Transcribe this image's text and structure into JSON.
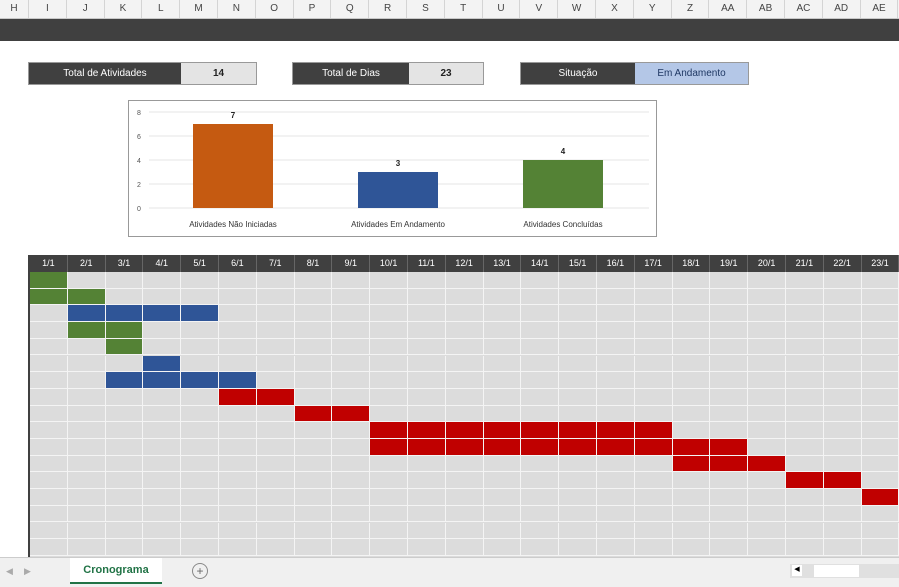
{
  "columns": [
    "H",
    "I",
    "J",
    "K",
    "L",
    "M",
    "N",
    "O",
    "P",
    "Q",
    "R",
    "S",
    "T",
    "U",
    "V",
    "W",
    "X",
    "Y",
    "Z",
    "AA",
    "AB",
    "AC",
    "AD",
    "AE"
  ],
  "kpis": {
    "total_activities_label": "Total de Atividades",
    "total_activities": "14",
    "total_days_label": "Total de Dias",
    "total_days": "23",
    "status_label": "Situação",
    "status": "Em Andamento"
  },
  "chart_data": {
    "type": "bar",
    "categories": [
      "Atividades Não Iniciadas",
      "Atividades Em Andamento",
      "Atividades Concluídas"
    ],
    "values": [
      7,
      3,
      4
    ],
    "colors": [
      "#c55a11",
      "#2f5597",
      "#548235"
    ],
    "ylim": [
      0,
      8
    ],
    "yticks": [
      "0",
      "2",
      "4",
      "6",
      "8"
    ],
    "data_labels": [
      "7",
      "3",
      "4"
    ],
    "grid": true
  },
  "gantt": {
    "dates": [
      "1/1",
      "2/1",
      "3/1",
      "4/1",
      "5/1",
      "6/1",
      "7/1",
      "8/1",
      "9/1",
      "10/1",
      "11/1",
      "12/1",
      "13/1",
      "14/1",
      "15/1",
      "16/1",
      "17/1",
      "18/1",
      "19/1",
      "20/1",
      "21/1",
      "22/1",
      "23/1"
    ],
    "colors": {
      "done": "#548235",
      "progress": "#2f5597",
      "pending": "#c00000"
    },
    "tasks": [
      {
        "start": 1,
        "end": 1,
        "status": "done"
      },
      {
        "start": 1,
        "end": 2,
        "status": "done"
      },
      {
        "start": 2,
        "end": 5,
        "status": "progress"
      },
      {
        "start": 2,
        "end": 3,
        "status": "done"
      },
      {
        "start": 3,
        "end": 3,
        "status": "done"
      },
      {
        "start": 4,
        "end": 4,
        "status": "progress"
      },
      {
        "start": 3,
        "end": 6,
        "status": "progress"
      },
      {
        "start": 6,
        "end": 7,
        "status": "pending"
      },
      {
        "start": 8,
        "end": 9,
        "status": "pending"
      },
      {
        "start": 10,
        "end": 17,
        "status": "pending"
      },
      {
        "start": 10,
        "end": 19,
        "status": "pending"
      },
      {
        "start": 18,
        "end": 20,
        "status": "pending"
      },
      {
        "start": 21,
        "end": 22,
        "status": "pending"
      },
      {
        "start": 23,
        "end": 23,
        "status": "pending"
      }
    ]
  },
  "sheet_tabs": [
    {
      "label": "Cronograma",
      "active": true
    }
  ],
  "add_sheet_icon": "plus-circle-icon"
}
